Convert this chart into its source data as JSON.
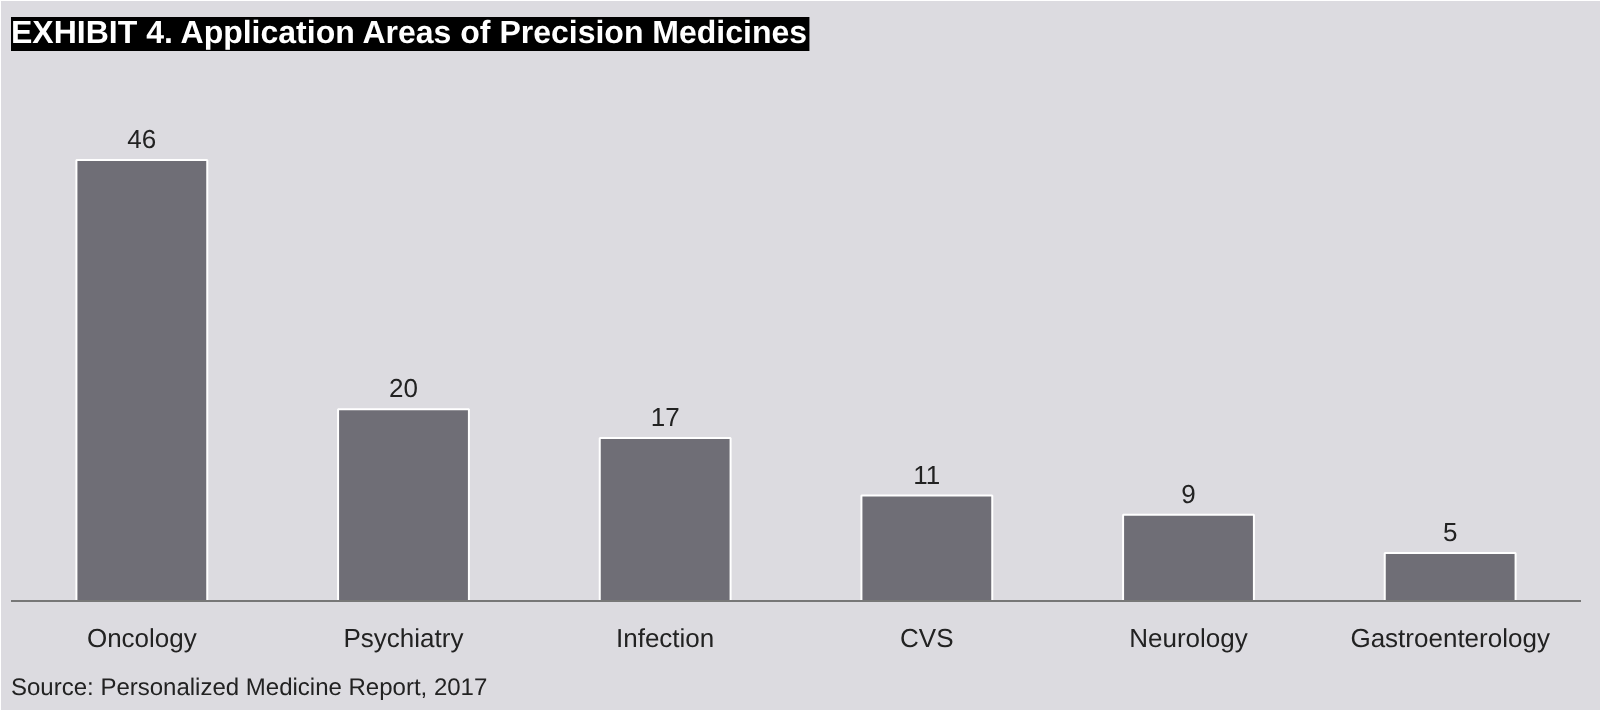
{
  "chart_data": {
    "type": "bar",
    "title": "EXHIBIT 4. Application Areas of Precision Medicines",
    "categories": [
      "Oncology",
      "Psychiatry",
      "Infection",
      "CVS",
      "Neurology",
      "Gastroenterology"
    ],
    "values": [
      46,
      20,
      17,
      11,
      9,
      5
    ],
    "color": "#6f6e76",
    "data_labels": true,
    "grid": false,
    "annotations": [
      "Source: Personalized Medicine Report, 2017"
    ]
  }
}
